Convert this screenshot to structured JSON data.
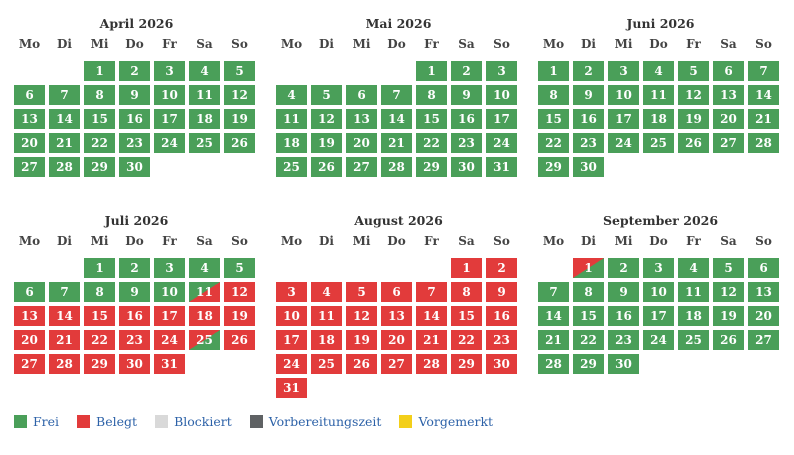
{
  "weekdays": [
    "Mo",
    "Di",
    "Mi",
    "Do",
    "Fr",
    "Sa",
    "So"
  ],
  "months": [
    {
      "title": "April 2026",
      "offset": 2,
      "days": 30,
      "belegt": [],
      "in": [],
      "out": []
    },
    {
      "title": "Mai 2026",
      "offset": 4,
      "days": 31,
      "belegt": [],
      "in": [],
      "out": []
    },
    {
      "title": "Juni 2026",
      "offset": 0,
      "days": 30,
      "belegt": [],
      "in": [],
      "out": []
    },
    {
      "title": "Juli 2026",
      "offset": 2,
      "days": 31,
      "belegt": [
        12,
        13,
        14,
        15,
        16,
        17,
        18,
        19,
        20,
        21,
        22,
        23,
        24,
        26,
        27,
        28,
        29,
        30,
        31
      ],
      "in": [
        11
      ],
      "out": [
        25
      ]
    },
    {
      "title": "August 2026",
      "offset": 5,
      "days": 31,
      "belegt": [
        1,
        2,
        3,
        4,
        5,
        6,
        7,
        8,
        9,
        10,
        11,
        12,
        13,
        14,
        15,
        16,
        17,
        18,
        19,
        20,
        21,
        22,
        23,
        24,
        25,
        26,
        27,
        28,
        29,
        30,
        31
      ],
      "in": [],
      "out": []
    },
    {
      "title": "September 2026",
      "offset": 1,
      "days": 30,
      "belegt": [],
      "in": [],
      "out": [
        1
      ]
    }
  ],
  "legend": [
    {
      "label": "Frei",
      "color": "#4a9f59"
    },
    {
      "label": "Belegt",
      "color": "#e23b3b"
    },
    {
      "label": "Blockiert",
      "color": "#d9d9d9"
    },
    {
      "label": "Vorbereitungszeit",
      "color": "#5f6264"
    },
    {
      "label": "Vorgemerkt",
      "color": "#f3cf1a"
    }
  ]
}
